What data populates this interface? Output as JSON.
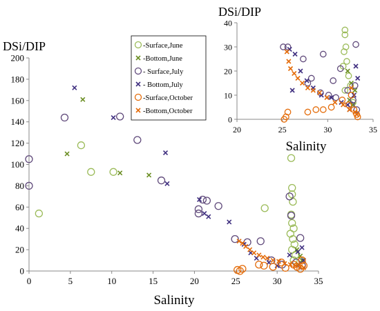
{
  "chart_data": [
    {
      "type": "scatter",
      "title": "",
      "xlabel": "Salinity",
      "ylabel": "DSi/DIP",
      "xlim": [
        0,
        35
      ],
      "ylim": [
        0,
        200
      ],
      "xticks": [
        "0",
        "5",
        "10",
        "15",
        "20",
        "25",
        "30",
        "35"
      ],
      "yticks": [
        "0",
        "20",
        "40",
        "60",
        "80",
        "100",
        "120",
        "140",
        "160",
        "180",
        "200"
      ],
      "grid": false,
      "legend": "top-right",
      "series": [
        {
          "name": "-Surface,June",
          "marker": "circle",
          "color": "#9bbb59",
          "points": [
            [
              1.2,
              54
            ],
            [
              6.3,
              118
            ],
            [
              7.5,
              93
            ],
            [
              10.2,
              93
            ],
            [
              28.5,
              59
            ],
            [
              31.7,
              106
            ],
            [
              31.8,
              78
            ],
            [
              31.8,
              72
            ],
            [
              31.9,
              65
            ],
            [
              31.7,
              53
            ],
            [
              31.8,
              45
            ],
            [
              32,
              40
            ],
            [
              31.6,
              35
            ],
            [
              31.9,
              30
            ],
            [
              32.1,
              25
            ],
            [
              31.8,
              20
            ],
            [
              32.2,
              15
            ],
            [
              32,
              10
            ]
          ]
        },
        {
          "name": "-Bottom,June",
          "marker": "x",
          "color": "#6b8e23",
          "points": [
            [
              4.6,
              110
            ],
            [
              6.5,
              161
            ],
            [
              11,
              92
            ],
            [
              14.5,
              90
            ],
            [
              32.4,
              20
            ],
            [
              32.8,
              14
            ],
            [
              33,
              10
            ],
            [
              32.6,
              6
            ]
          ]
        },
        {
          "name": "- Surface,July",
          "marker": "circle",
          "color": "#604a7b",
          "points": [
            [
              0,
              105
            ],
            [
              0,
              80
            ],
            [
              4.3,
              144
            ],
            [
              11,
              145
            ],
            [
              13.1,
              123
            ],
            [
              16,
              85
            ],
            [
              20.5,
              58
            ],
            [
              20.5,
              54
            ],
            [
              21,
              67
            ],
            [
              21.5,
              66
            ],
            [
              22.9,
              61
            ],
            [
              24.9,
              30
            ],
            [
              26.4,
              27
            ],
            [
              28,
              28
            ],
            [
              29.3,
              10
            ],
            [
              30.6,
              6
            ],
            [
              31.5,
              70
            ],
            [
              31.7,
              52
            ],
            [
              32.3,
              8
            ],
            [
              32.8,
              31
            ],
            [
              33,
              5
            ]
          ]
        },
        {
          "name": "- Bottom,July",
          "marker": "x",
          "color": "#403080",
          "points": [
            [
              5.5,
              172
            ],
            [
              10.2,
              144
            ],
            [
              16.5,
              111
            ],
            [
              16.7,
              82
            ],
            [
              20.6,
              67
            ],
            [
              21.2,
              54
            ],
            [
              21.7,
              51
            ],
            [
              24.2,
              46
            ],
            [
              26,
              25
            ],
            [
              26.8,
              17
            ],
            [
              27.5,
              12
            ],
            [
              29,
              8
            ],
            [
              30,
              5
            ],
            [
              31.5,
              15
            ],
            [
              32.5,
              18
            ],
            [
              33,
              22
            ],
            [
              33.2,
              10
            ]
          ]
        },
        {
          "name": "-Surface,October",
          "marker": "circle",
          "color": "#e46c0a",
          "points": [
            [
              25.2,
              1
            ],
            [
              25.5,
              0
            ],
            [
              25.8,
              2
            ],
            [
              27.8,
              6
            ],
            [
              28.4,
              5
            ],
            [
              29.5,
              4
            ],
            [
              30.5,
              8
            ],
            [
              31,
              3
            ],
            [
              32,
              6
            ],
            [
              32.4,
              4
            ],
            [
              32.8,
              2
            ],
            [
              33,
              10
            ],
            [
              33.2,
              5
            ]
          ]
        },
        {
          "name": "-Bottom,October",
          "marker": "x",
          "color": "#e46c0a",
          "points": [
            [
              25.4,
              28
            ],
            [
              25.8,
              26
            ],
            [
              26.2,
              23
            ],
            [
              26.7,
              20
            ],
            [
              27.2,
              17
            ],
            [
              27.8,
              15
            ],
            [
              28.3,
              13
            ],
            [
              28.8,
              12
            ],
            [
              29.5,
              10
            ],
            [
              30.2,
              9
            ],
            [
              30.9,
              7
            ],
            [
              31.6,
              6
            ],
            [
              32.2,
              5
            ],
            [
              32.8,
              4
            ],
            [
              33.2,
              3
            ]
          ]
        }
      ]
    },
    {
      "type": "scatter",
      "title": "",
      "xlabel": "Salinity",
      "ylabel": "DSi/DIP",
      "xlim": [
        20,
        35
      ],
      "ylim": [
        0,
        40
      ],
      "xticks": [
        "20",
        "25",
        "30",
        "35"
      ],
      "yticks": [
        "0",
        "10",
        "20",
        "30",
        "40"
      ],
      "grid": false,
      "series": [
        {
          "name": "-Surface,June",
          "marker": "circle",
          "color": "#9bbb59",
          "points": [
            [
              31.9,
              37
            ],
            [
              31.9,
              35
            ],
            [
              32,
              30
            ],
            [
              31.8,
              28
            ],
            [
              32.1,
              24
            ],
            [
              31.7,
              22
            ],
            [
              32.3,
              18
            ],
            [
              32.5,
              14
            ],
            [
              31.9,
              12
            ],
            [
              32.6,
              10
            ],
            [
              32.8,
              7
            ]
          ]
        },
        {
          "name": "-Bottom,June",
          "marker": "x",
          "color": "#6b8e23",
          "points": [
            [
              32.2,
              20
            ],
            [
              32.6,
              15
            ],
            [
              33,
              12
            ],
            [
              32.4,
              8
            ],
            [
              32.8,
              6
            ]
          ]
        },
        {
          "name": "- Surface,July",
          "marker": "circle",
          "color": "#604a7b",
          "points": [
            [
              25.1,
              30
            ],
            [
              25.6,
              30
            ],
            [
              27.3,
              25
            ],
            [
              29.5,
              27
            ],
            [
              31.4,
              21
            ],
            [
              30.6,
              16
            ],
            [
              28.2,
              17
            ],
            [
              27.8,
              15
            ],
            [
              29.2,
              11
            ],
            [
              30.1,
              10
            ],
            [
              30.9,
              9
            ],
            [
              32.2,
              12
            ],
            [
              32.8,
              8
            ],
            [
              33.1,
              31
            ],
            [
              33,
              14
            ],
            [
              32.6,
              6
            ],
            [
              33.2,
              4
            ]
          ]
        },
        {
          "name": "- Bottom,July",
          "marker": "x",
          "color": "#403080",
          "points": [
            [
              25.8,
              29
            ],
            [
              26.4,
              27
            ],
            [
              26.1,
              12
            ],
            [
              27,
              20
            ],
            [
              27.7,
              16
            ],
            [
              28.4,
              13
            ],
            [
              29.3,
              10
            ],
            [
              30.4,
              9
            ],
            [
              31.5,
              7
            ],
            [
              32.2,
              6
            ],
            [
              32.9,
              10
            ],
            [
              33.1,
              22
            ],
            [
              33.3,
              17
            ],
            [
              32.4,
              4
            ]
          ]
        },
        {
          "name": "-Surface,October",
          "marker": "circle",
          "color": "#e46c0a",
          "points": [
            [
              25.4,
              1
            ],
            [
              25.6,
              3
            ],
            [
              25.2,
              0
            ],
            [
              27.8,
              3
            ],
            [
              28.7,
              4
            ],
            [
              29.5,
              4
            ],
            [
              30.4,
              5
            ],
            [
              31.6,
              8
            ],
            [
              32.3,
              6
            ],
            [
              32.9,
              4
            ],
            [
              33.2,
              2
            ],
            [
              33.3,
              1
            ],
            [
              32.6,
              10
            ]
          ]
        },
        {
          "name": "-Bottom,October",
          "marker": "x",
          "color": "#e46c0a",
          "points": [
            [
              25.5,
              28
            ],
            [
              25.7,
              24
            ],
            [
              25.9,
              21
            ],
            [
              26.3,
              19
            ],
            [
              26.7,
              17
            ],
            [
              27.2,
              15
            ],
            [
              27.8,
              13
            ],
            [
              28.4,
              12
            ],
            [
              29.1,
              11
            ],
            [
              29.9,
              9
            ],
            [
              30.8,
              7
            ],
            [
              31.7,
              6
            ],
            [
              32.4,
              4
            ],
            [
              33,
              3
            ],
            [
              33.2,
              2
            ],
            [
              32.6,
              13
            ]
          ]
        }
      ]
    }
  ]
}
